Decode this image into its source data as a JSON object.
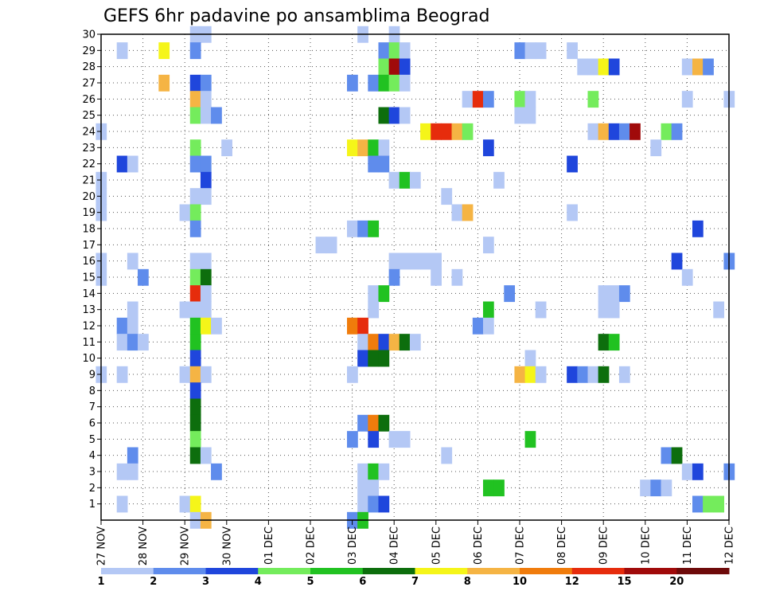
{
  "chart_data": {
    "type": "heatmap",
    "title": "GEFS 6hr padavine po ansamblima Beograd",
    "xlabel": "",
    "ylabel": "",
    "x_tick_labels": [
      "27 NOV",
      "28 NOV",
      "29 NOV",
      "30 NOV",
      "01 DEC",
      "02 DEC",
      "03 DEC",
      "04 DEC",
      "05 DEC",
      "06 DEC",
      "07 DEC",
      "08 DEC",
      "09 DEC",
      "10 DEC",
      "11 DEC",
      "12 DEC"
    ],
    "xlim_6h_steps": [
      0,
      60
    ],
    "y_tick_labels": [
      1,
      2,
      3,
      4,
      5,
      6,
      7,
      8,
      9,
      10,
      11,
      12,
      13,
      14,
      15,
      16,
      17,
      18,
      19,
      20,
      21,
      22,
      23,
      24,
      25,
      26,
      27,
      28,
      29,
      30
    ],
    "ylim_members": [
      0,
      30
    ],
    "grid": true,
    "legend_position": "bottom",
    "colorbar": {
      "labels": [
        "1",
        "2",
        "3",
        "4",
        "5",
        "6",
        "7",
        "8",
        "10",
        "12",
        "15",
        "20"
      ],
      "colors": [
        "#b4c8f5",
        "#5f8cec",
        "#1f46dc",
        "#74ec5c",
        "#21c221",
        "#0d6e0d",
        "#f5f519",
        "#f5b444",
        "#f07c0c",
        "#e62c0c",
        "#a00a0a",
        "#6e0a0a"
      ]
    },
    "cells": [
      [
        30,
        9,
        0
      ],
      [
        30,
        10,
        0
      ],
      [
        30,
        25,
        0
      ],
      [
        30,
        28,
        0
      ],
      [
        29,
        2,
        0
      ],
      [
        29,
        6,
        6
      ],
      [
        29,
        9,
        1
      ],
      [
        29,
        27,
        1
      ],
      [
        29,
        28,
        3
      ],
      [
        29,
        29,
        0
      ],
      [
        29,
        40,
        1
      ],
      [
        29,
        41,
        0
      ],
      [
        29,
        42,
        0
      ],
      [
        29,
        45,
        0
      ],
      [
        28,
        27,
        3
      ],
      [
        28,
        28,
        10
      ],
      [
        28,
        29,
        2
      ],
      [
        28,
        46,
        0
      ],
      [
        28,
        47,
        0
      ],
      [
        28,
        48,
        6
      ],
      [
        28,
        49,
        2
      ],
      [
        28,
        56,
        0
      ],
      [
        28,
        57,
        7
      ],
      [
        28,
        58,
        1
      ],
      [
        27,
        6,
        7
      ],
      [
        27,
        9,
        2
      ],
      [
        27,
        10,
        1
      ],
      [
        27,
        24,
        1
      ],
      [
        27,
        26,
        1
      ],
      [
        27,
        27,
        4
      ],
      [
        27,
        28,
        3
      ],
      [
        27,
        29,
        0
      ],
      [
        26,
        9,
        7
      ],
      [
        26,
        10,
        0
      ],
      [
        26,
        35,
        0
      ],
      [
        26,
        36,
        9
      ],
      [
        26,
        37,
        1
      ],
      [
        26,
        40,
        3
      ],
      [
        26,
        41,
        0
      ],
      [
        26,
        47,
        3
      ],
      [
        26,
        56,
        0
      ],
      [
        26,
        60,
        0
      ],
      [
        25,
        9,
        3
      ],
      [
        25,
        10,
        0
      ],
      [
        25,
        11,
        1
      ],
      [
        25,
        27,
        5
      ],
      [
        25,
        28,
        2
      ],
      [
        25,
        29,
        0
      ],
      [
        25,
        40,
        0
      ],
      [
        25,
        41,
        0
      ],
      [
        24,
        0,
        0
      ],
      [
        24,
        31,
        6
      ],
      [
        24,
        32,
        9
      ],
      [
        24,
        33,
        9
      ],
      [
        24,
        34,
        7
      ],
      [
        24,
        35,
        3
      ],
      [
        24,
        47,
        0
      ],
      [
        24,
        48,
        7
      ],
      [
        24,
        49,
        2
      ],
      [
        24,
        50,
        1
      ],
      [
        24,
        51,
        10
      ],
      [
        24,
        54,
        3
      ],
      [
        24,
        55,
        1
      ],
      [
        23,
        9,
        3
      ],
      [
        23,
        12,
        0
      ],
      [
        23,
        24,
        6
      ],
      [
        23,
        25,
        7
      ],
      [
        23,
        26,
        4
      ],
      [
        23,
        27,
        0
      ],
      [
        23,
        37,
        2
      ],
      [
        23,
        53,
        0
      ],
      [
        22,
        2,
        2
      ],
      [
        22,
        3,
        0
      ],
      [
        22,
        9,
        1
      ],
      [
        22,
        10,
        1
      ],
      [
        22,
        26,
        1
      ],
      [
        22,
        27,
        1
      ],
      [
        22,
        45,
        2
      ],
      [
        21,
        0,
        0
      ],
      [
        21,
        10,
        2
      ],
      [
        21,
        28,
        0
      ],
      [
        21,
        29,
        4
      ],
      [
        21,
        30,
        0
      ],
      [
        21,
        38,
        0
      ],
      [
        20,
        0,
        0
      ],
      [
        20,
        9,
        0
      ],
      [
        20,
        10,
        0
      ],
      [
        20,
        33,
        0
      ],
      [
        19,
        0,
        0
      ],
      [
        19,
        8,
        0
      ],
      [
        19,
        9,
        3
      ],
      [
        19,
        34,
        0
      ],
      [
        19,
        35,
        7
      ],
      [
        19,
        45,
        0
      ],
      [
        18,
        9,
        1
      ],
      [
        18,
        24,
        0
      ],
      [
        18,
        25,
        1
      ],
      [
        18,
        26,
        4
      ],
      [
        18,
        57,
        2
      ],
      [
        17,
        21,
        0
      ],
      [
        17,
        22,
        0
      ],
      [
        17,
        37,
        0
      ],
      [
        16,
        0,
        0
      ],
      [
        16,
        3,
        0
      ],
      [
        16,
        9,
        0
      ],
      [
        16,
        10,
        0
      ],
      [
        16,
        28,
        0
      ],
      [
        16,
        29,
        0
      ],
      [
        16,
        30,
        0
      ],
      [
        16,
        31,
        0
      ],
      [
        16,
        32,
        0
      ],
      [
        16,
        55,
        2
      ],
      [
        16,
        60,
        1
      ],
      [
        15,
        0,
        0
      ],
      [
        15,
        4,
        1
      ],
      [
        15,
        9,
        3
      ],
      [
        15,
        10,
        5
      ],
      [
        15,
        28,
        1
      ],
      [
        15,
        32,
        0
      ],
      [
        15,
        34,
        0
      ],
      [
        15,
        56,
        0
      ],
      [
        14,
        9,
        9
      ],
      [
        14,
        10,
        0
      ],
      [
        14,
        26,
        0
      ],
      [
        14,
        27,
        4
      ],
      [
        14,
        39,
        1
      ],
      [
        14,
        48,
        0
      ],
      [
        14,
        49,
        0
      ],
      [
        14,
        50,
        1
      ],
      [
        13,
        3,
        0
      ],
      [
        13,
        8,
        0
      ],
      [
        13,
        9,
        0
      ],
      [
        13,
        10,
        0
      ],
      [
        13,
        26,
        0
      ],
      [
        13,
        37,
        4
      ],
      [
        13,
        42,
        0
      ],
      [
        13,
        48,
        0
      ],
      [
        13,
        49,
        0
      ],
      [
        13,
        59,
        0
      ],
      [
        12,
        2,
        1
      ],
      [
        12,
        3,
        0
      ],
      [
        12,
        9,
        4
      ],
      [
        12,
        10,
        6
      ],
      [
        12,
        11,
        0
      ],
      [
        12,
        24,
        8
      ],
      [
        12,
        25,
        9
      ],
      [
        12,
        36,
        1
      ],
      [
        12,
        37,
        0
      ],
      [
        11,
        2,
        0
      ],
      [
        11,
        3,
        1
      ],
      [
        11,
        4,
        0
      ],
      [
        11,
        9,
        4
      ],
      [
        11,
        25,
        0
      ],
      [
        11,
        26,
        8
      ],
      [
        11,
        27,
        2
      ],
      [
        11,
        28,
        7
      ],
      [
        11,
        29,
        5
      ],
      [
        11,
        30,
        0
      ],
      [
        11,
        48,
        5
      ],
      [
        11,
        49,
        4
      ],
      [
        10,
        9,
        2
      ],
      [
        10,
        25,
        2
      ],
      [
        10,
        26,
        5
      ],
      [
        10,
        27,
        5
      ],
      [
        10,
        41,
        0
      ],
      [
        9,
        0,
        0
      ],
      [
        9,
        2,
        0
      ],
      [
        9,
        8,
        0
      ],
      [
        9,
        9,
        7
      ],
      [
        9,
        10,
        0
      ],
      [
        9,
        24,
        0
      ],
      [
        9,
        40,
        7
      ],
      [
        9,
        41,
        6
      ],
      [
        9,
        42,
        0
      ],
      [
        9,
        45,
        2
      ],
      [
        9,
        46,
        1
      ],
      [
        9,
        47,
        0
      ],
      [
        9,
        48,
        5
      ],
      [
        9,
        50,
        0
      ],
      [
        8,
        9,
        2
      ],
      [
        7,
        9,
        5
      ],
      [
        6,
        9,
        5
      ],
      [
        6,
        25,
        1
      ],
      [
        6,
        26,
        8
      ],
      [
        6,
        27,
        5
      ],
      [
        5,
        9,
        3
      ],
      [
        5,
        24,
        1
      ],
      [
        5,
        26,
        2
      ],
      [
        5,
        28,
        0
      ],
      [
        5,
        29,
        0
      ],
      [
        5,
        41,
        4
      ],
      [
        4,
        3,
        1
      ],
      [
        4,
        9,
        5
      ],
      [
        4,
        10,
        0
      ],
      [
        4,
        33,
        0
      ],
      [
        4,
        54,
        1
      ],
      [
        4,
        55,
        5
      ],
      [
        3,
        2,
        0
      ],
      [
        3,
        3,
        0
      ],
      [
        3,
        11,
        1
      ],
      [
        3,
        25,
        0
      ],
      [
        3,
        26,
        4
      ],
      [
        3,
        27,
        0
      ],
      [
        3,
        56,
        0
      ],
      [
        3,
        57,
        2
      ],
      [
        3,
        60,
        1
      ],
      [
        2,
        25,
        0
      ],
      [
        2,
        26,
        0
      ],
      [
        2,
        37,
        4
      ],
      [
        2,
        38,
        4
      ],
      [
        2,
        52,
        0
      ],
      [
        2,
        53,
        1
      ],
      [
        2,
        54,
        0
      ],
      [
        1,
        2,
        0
      ],
      [
        1,
        8,
        0
      ],
      [
        1,
        9,
        6
      ],
      [
        1,
        25,
        0
      ],
      [
        1,
        26,
        1
      ],
      [
        1,
        27,
        2
      ],
      [
        1,
        57,
        1
      ],
      [
        1,
        58,
        3
      ],
      [
        1,
        59,
        3
      ],
      [
        0,
        9,
        0
      ],
      [
        0,
        10,
        7
      ],
      [
        0,
        24,
        1
      ],
      [
        0,
        25,
        4
      ]
    ]
  }
}
